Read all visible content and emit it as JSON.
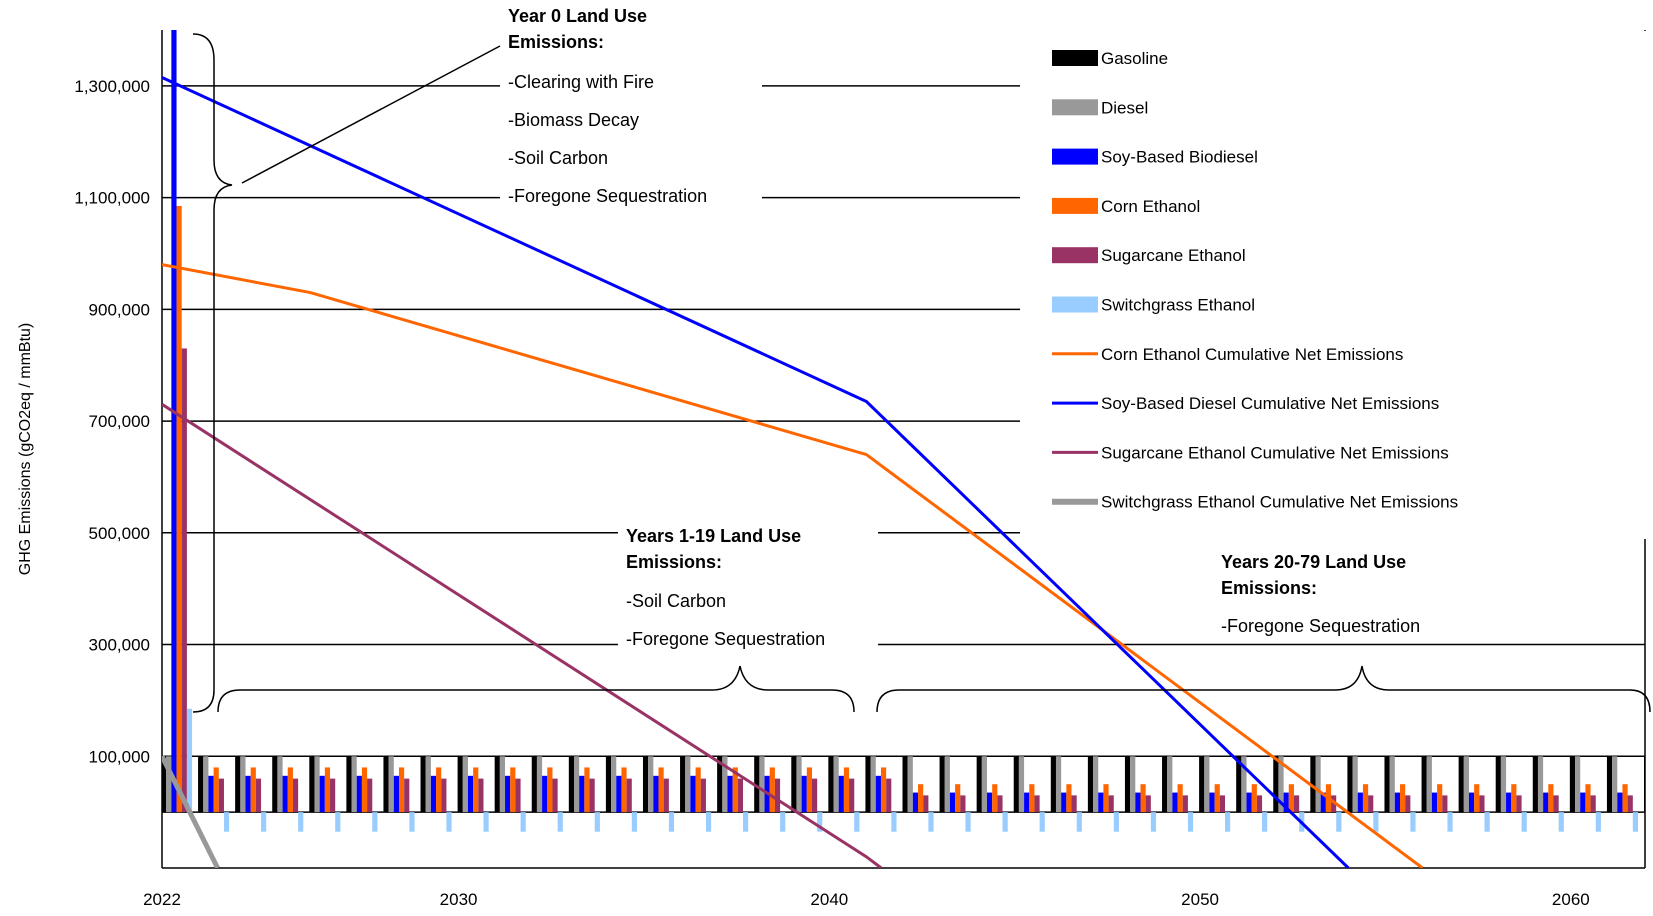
{
  "chart_data": {
    "type": "bar",
    "title": "",
    "ylabel": "GHG Emissions (gCO2eq / mmBtu)",
    "xlabel": "",
    "ylim": [
      -100000,
      1400000
    ],
    "xlim": [
      2022,
      2062
    ],
    "yticks": [
      100000,
      300000,
      500000,
      700000,
      900000,
      1100000,
      1300000
    ],
    "ytick_labels": [
      "100,000",
      "300,000",
      "500,000",
      "700,000",
      "900,000",
      "1,100,000",
      "1,300,000"
    ],
    "xticks": [
      2022,
      2030,
      2040,
      2050,
      2060
    ],
    "xtick_labels": [
      "2022",
      "2030",
      "2040",
      "2050",
      "2060"
    ],
    "grid": "horizontal",
    "legend_position": "top-right",
    "bar_series": [
      {
        "name": "Gasoline",
        "color": "#000000",
        "year0": 100000,
        "years_1_19": 100000,
        "years_20_79": 100000
      },
      {
        "name": "Diesel",
        "color": "#999999",
        "year0": 100000,
        "years_1_19": 100000,
        "years_20_79": 100000
      },
      {
        "name": "Soy-Based Biodiesel",
        "color": "#0000ff",
        "year0": 1400000,
        "years_1_19": 65000,
        "years_20_79": 35000
      },
      {
        "name": "Corn Ethanol",
        "color": "#ff6600",
        "year0": 1085000,
        "years_1_19": 80000,
        "years_20_79": 50000
      },
      {
        "name": "Sugarcane Ethanol",
        "color": "#993366",
        "year0": 830000,
        "years_1_19": 60000,
        "years_20_79": 30000
      },
      {
        "name": "Switchgrass Ethanol",
        "color": "#99ccff",
        "year0": 185000,
        "years_1_19": -35000,
        "years_20_79": -35000
      }
    ],
    "line_series": [
      {
        "name": "Corn Ethanol Cumulative Net Emissions",
        "color": "#ff6600",
        "points": [
          [
            2022,
            980000
          ],
          [
            2026,
            930000
          ],
          [
            2041,
            640000
          ],
          [
            2056,
            -100000
          ]
        ]
      },
      {
        "name": "Soy-Based Diesel Cumulative Net Emissions",
        "color": "#0000ff",
        "points": [
          [
            2022,
            1315000
          ],
          [
            2041,
            735000
          ],
          [
            2054,
            -100000
          ]
        ]
      },
      {
        "name": "Sugarcane Ethanol Cumulative Net Emissions",
        "color": "#993366",
        "points": [
          [
            2022,
            730000
          ],
          [
            2041,
            -80000
          ],
          [
            2041.4,
            -100000
          ]
        ]
      },
      {
        "name": "Switchgrass Ethanol Cumulative Net Emissions",
        "color": "#999999",
        "points": [
          [
            2022,
            100000
          ],
          [
            2023.5,
            -100000
          ]
        ]
      }
    ],
    "annotations": [
      {
        "title": [
          "Year 0 Land Use",
          "Emissions:"
        ],
        "items": [
          "-Clearing with Fire",
          "-Biomass Decay",
          "-Soil Carbon",
          "-Foregone Sequestration"
        ]
      },
      {
        "title": [
          "Years 1-19 Land Use",
          "Emissions:"
        ],
        "items": [
          "-Soil Carbon",
          "-Foregone Sequestration"
        ]
      },
      {
        "title": [
          "Years 20-79 Land Use",
          "Emissions:"
        ],
        "items": [
          "-Foregone Sequestration"
        ]
      }
    ]
  }
}
